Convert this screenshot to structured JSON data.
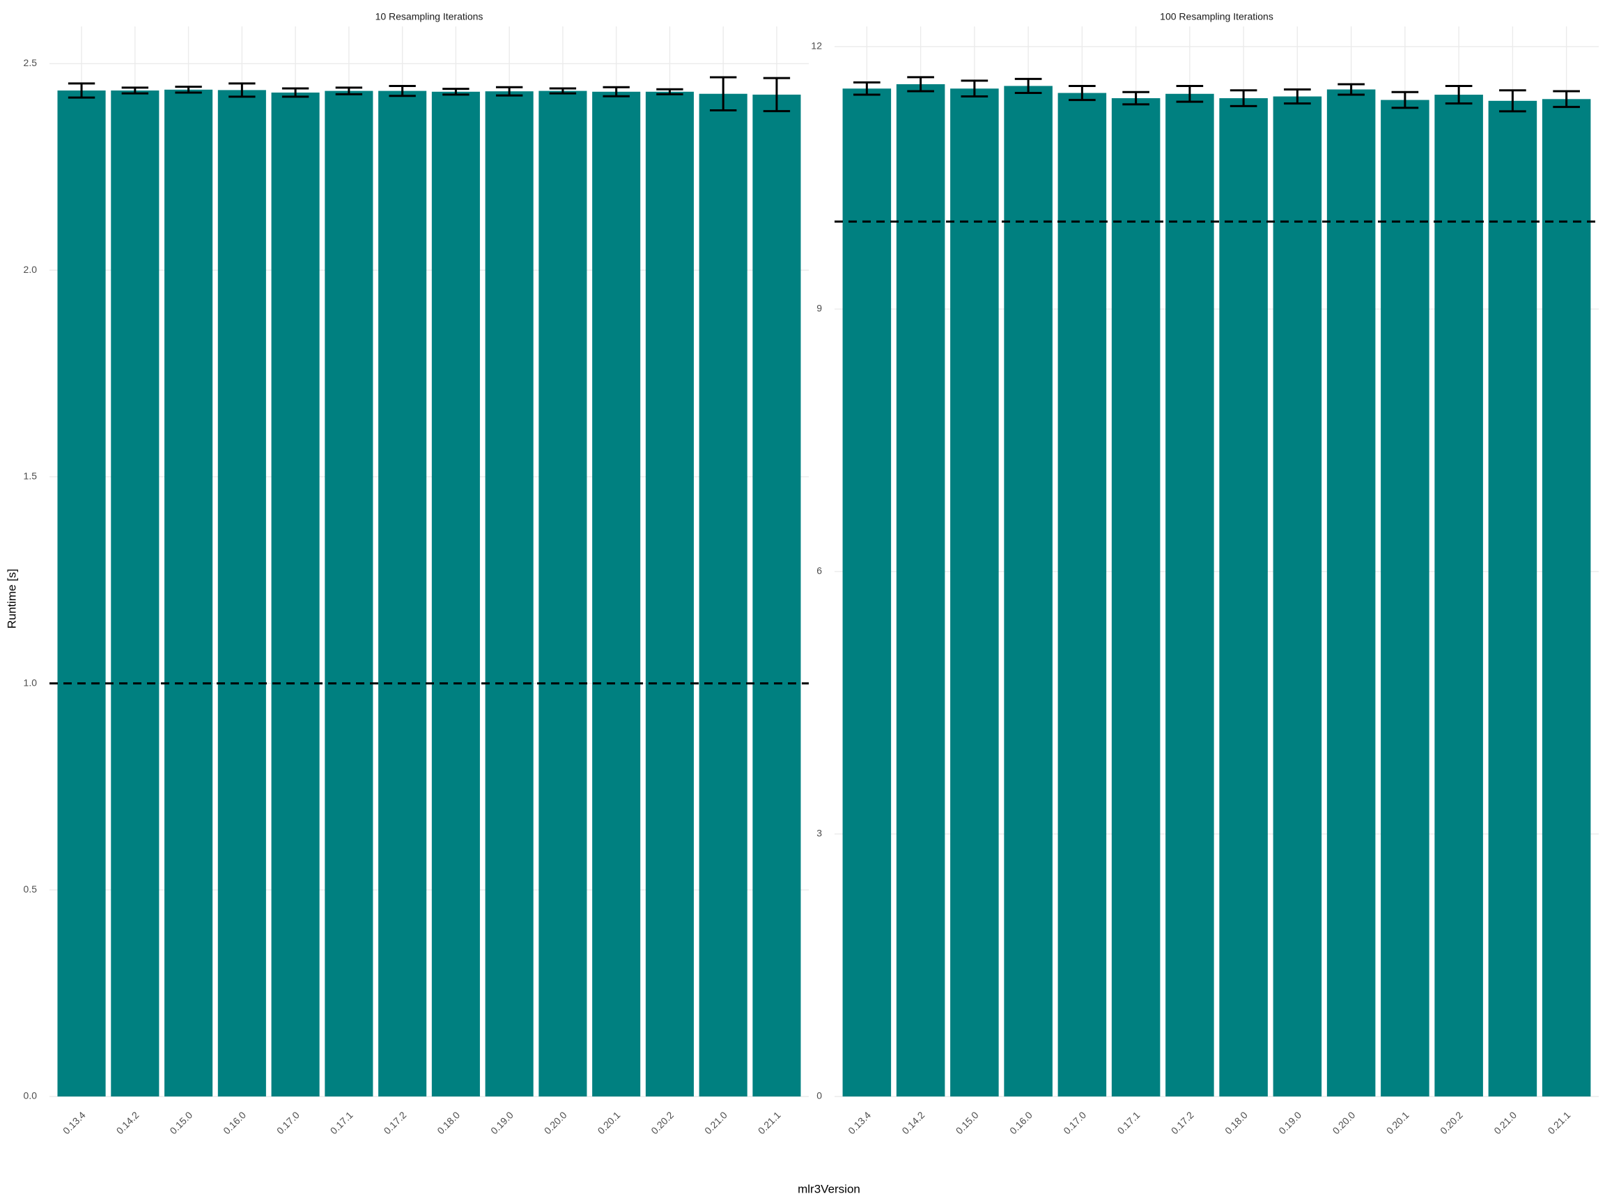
{
  "x_label": "mlr3Version",
  "y_label": "Runtime [s]",
  "chart_data": [
    {
      "type": "bar",
      "title": "10 Resampling Iterations",
      "categories": [
        "0.13.4",
        "0.14.2",
        "0.15.0",
        "0.16.0",
        "0.17.0",
        "0.17.1",
        "0.17.2",
        "0.18.0",
        "0.19.0",
        "0.20.0",
        "0.20.1",
        "0.20.2",
        "0.21.0",
        "0.21.1"
      ],
      "values": [
        2.435,
        2.435,
        2.437,
        2.436,
        2.43,
        2.434,
        2.434,
        2.432,
        2.433,
        2.434,
        2.432,
        2.432,
        2.427,
        2.425
      ],
      "errors": [
        0.017,
        0.007,
        0.007,
        0.016,
        0.01,
        0.008,
        0.012,
        0.007,
        0.01,
        0.006,
        0.011,
        0.006,
        0.04,
        0.04
      ],
      "color": "#008080",
      "hline": 1.0,
      "ylim": [
        0,
        2.59
      ],
      "yticks": [
        {
          "value": 0,
          "label": "0.0"
        },
        0.5,
        {
          "value": 1,
          "label": "1.0"
        },
        1.5,
        {
          "value": 2,
          "label": "2.0"
        },
        2.5
      ],
      "grid": true
    },
    {
      "type": "bar",
      "title": "100 Resampling Iterations",
      "categories": [
        "0.13.4",
        "0.14.2",
        "0.15.0",
        "0.16.0",
        "0.17.0",
        "0.17.1",
        "0.17.2",
        "0.18.0",
        "0.19.0",
        "0.20.0",
        "0.20.1",
        "0.20.2",
        "0.21.0",
        "0.21.1"
      ],
      "values": [
        11.52,
        11.57,
        11.52,
        11.55,
        11.47,
        11.41,
        11.46,
        11.41,
        11.43,
        11.51,
        11.39,
        11.45,
        11.38,
        11.4
      ],
      "errors": [
        0.07,
        0.08,
        0.09,
        0.08,
        0.08,
        0.07,
        0.09,
        0.09,
        0.08,
        0.06,
        0.09,
        0.1,
        0.12,
        0.09
      ],
      "color": "#008080",
      "hline": 10,
      "ylim": [
        0,
        12.23
      ],
      "yticks": [
        0,
        3,
        6,
        9,
        12
      ],
      "grid": true
    }
  ]
}
